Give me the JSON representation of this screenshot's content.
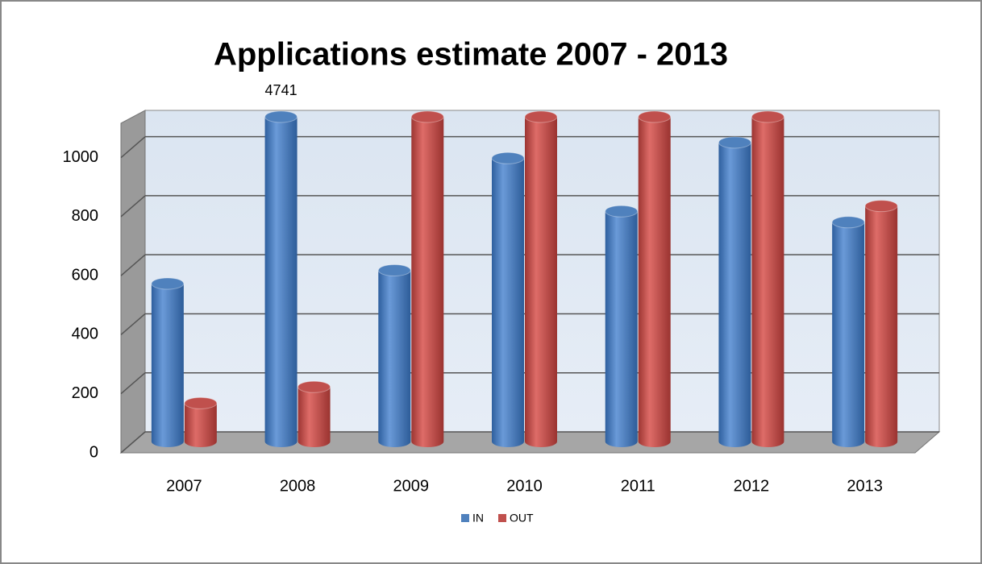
{
  "chart_data": {
    "type": "bar3d",
    "title": "Applications estimate 2007 - 2013",
    "categories": [
      "2007",
      "2008",
      "2009",
      "2010",
      "2011",
      "2012",
      "2013"
    ],
    "series": [
      {
        "name": "IN",
        "color": "#4f81bd",
        "values": [
          535,
          4741,
          580,
          960,
          780,
          1013,
          743
        ]
      },
      {
        "name": "OUT",
        "color": "#c0504d",
        "values": [
          130,
          185,
          1100,
          1100,
          1100,
          1100,
          798
        ]
      }
    ],
    "ylim": [
      0,
      1100
    ],
    "yticks": [
      0,
      200,
      400,
      600,
      800,
      1000
    ],
    "grid": true,
    "legend": "bottom"
  }
}
